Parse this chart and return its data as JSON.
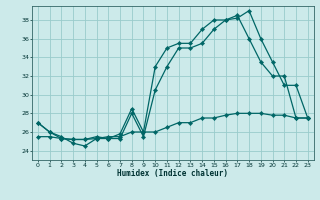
{
  "xlabel": "Humidex (Indice chaleur)",
  "bg_color": "#cceaea",
  "grid_color": "#99cccc",
  "line_color": "#006666",
  "xlim": [
    -0.5,
    23.5
  ],
  "ylim": [
    23,
    39.5
  ],
  "yticks": [
    24,
    26,
    28,
    30,
    32,
    34,
    36,
    38
  ],
  "xticks": [
    0,
    1,
    2,
    3,
    4,
    5,
    6,
    7,
    8,
    9,
    10,
    11,
    12,
    13,
    14,
    15,
    16,
    17,
    18,
    19,
    20,
    21,
    22,
    23
  ],
  "series1_x": [
    0,
    1,
    2,
    3,
    4,
    5,
    6,
    7,
    8,
    9,
    10,
    11,
    12,
    13,
    14,
    15,
    16,
    17,
    18,
    19,
    20,
    21,
    22,
    23
  ],
  "series1_y": [
    27,
    26,
    25.3,
    25.2,
    25.2,
    25.5,
    25.3,
    25.8,
    28.5,
    26,
    33,
    35,
    35.5,
    35.5,
    37,
    38,
    38,
    38.5,
    36,
    33.5,
    32,
    32,
    27.5,
    27.5
  ],
  "series2_x": [
    0,
    1,
    2,
    3,
    4,
    5,
    6,
    7,
    8,
    9,
    10,
    11,
    12,
    13,
    14,
    15,
    16,
    17,
    18,
    19,
    20,
    21,
    22,
    23
  ],
  "series2_y": [
    27,
    26,
    25.5,
    24.8,
    24.5,
    25.3,
    25.3,
    25.3,
    28,
    25.5,
    30.5,
    33,
    35,
    35,
    35.5,
    37,
    38,
    38.2,
    39,
    36,
    33.5,
    31,
    31,
    27.5
  ],
  "series3_x": [
    0,
    1,
    2,
    3,
    4,
    5,
    6,
    7,
    8,
    9,
    10,
    11,
    12,
    13,
    14,
    15,
    16,
    17,
    18,
    19,
    20,
    21,
    22,
    23
  ],
  "series3_y": [
    25.5,
    25.5,
    25.3,
    25.2,
    25.2,
    25.3,
    25.5,
    25.5,
    26,
    26,
    26,
    26.5,
    27,
    27,
    27.5,
    27.5,
    27.8,
    28,
    28,
    28,
    27.8,
    27.8,
    27.5,
    27.5
  ]
}
